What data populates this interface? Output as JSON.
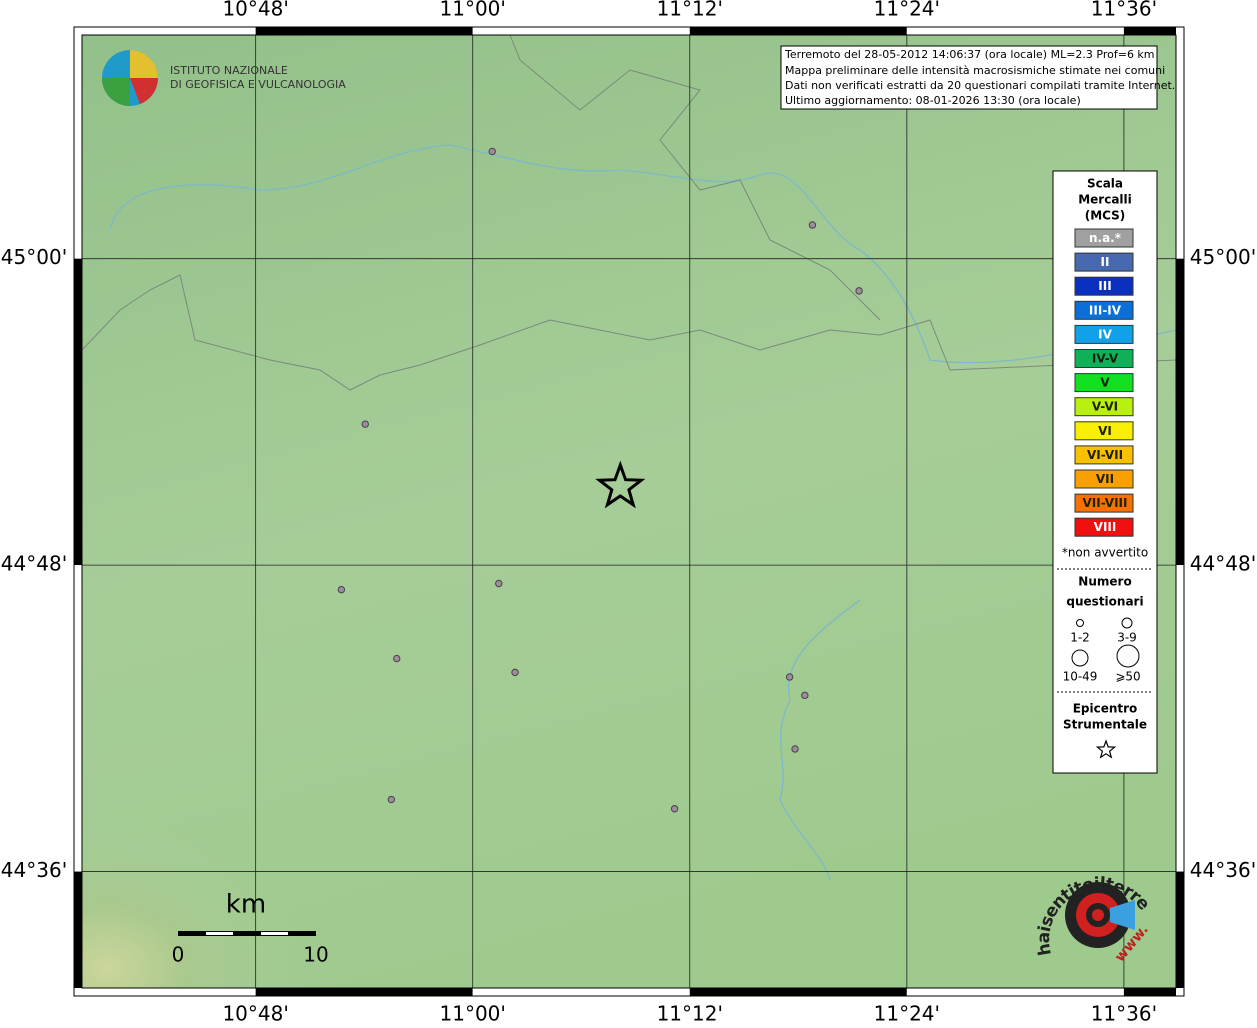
{
  "map": {
    "lonlim": [
      10.64,
      11.648
    ],
    "latlim": [
      44.524,
      45.146
    ],
    "lonticks": [
      {
        "value": 10.8,
        "label": "10°48'"
      },
      {
        "value": 11.0,
        "label": "11°00'"
      },
      {
        "value": 11.2,
        "label": "11°12'"
      },
      {
        "value": 11.4,
        "label": "11°24'"
      },
      {
        "value": 11.6,
        "label": "11°36'"
      }
    ],
    "latticks": [
      {
        "value": 45.0,
        "label": "45°00'"
      },
      {
        "value": 44.8,
        "label": "44°48'"
      },
      {
        "value": 44.6,
        "label": "44°36'"
      }
    ],
    "grid": true,
    "points": {
      "lon": [
        11.018,
        11.313,
        11.356,
        10.901,
        10.879,
        11.024,
        10.93,
        11.039,
        11.292,
        11.306,
        11.297,
        10.925,
        11.186
      ],
      "lat": [
        45.07,
        45.022,
        44.979,
        44.892,
        44.784,
        44.788,
        44.739,
        44.73,
        44.727,
        44.715,
        44.68,
        44.647,
        44.641
      ],
      "color": "#a08aa0"
    },
    "epicenter": {
      "lon": 11.136,
      "lat": 44.851
    },
    "logo": [
      "ISTITUTO NAZIONALE",
      "DI GEOFISICA E VULCANOLOGIA"
    ],
    "info": [
      "Terremoto del 28-05-2012 14:06:37 (ora locale) ML=2.3 Prof=6 km",
      "Mappa preliminare delle intensità macrosismiche stimate nei comuni",
      "Dati non verificati estratti da 20 questionari compilati tramite Internet.",
      "Ultimo aggiornamento: 08-01-2026 13:30 (ora locale)"
    ],
    "scalebar": {
      "unit": "km",
      "labels": [
        "0",
        "10"
      ]
    },
    "badge": {
      "text": "haisentitoilterremoto.it",
      "prefix": "www."
    }
  },
  "legend": {
    "title": [
      "Scala",
      "Mercalli",
      "(MCS)"
    ],
    "classes": [
      {
        "label": "n.a.*",
        "color": "#a0a0a0",
        "text_color": "#ffffff"
      },
      {
        "label": "II",
        "color": "#4868b0",
        "text_color": "#ffffff"
      },
      {
        "label": "III",
        "color": "#0a30c0",
        "text_color": "#ffffff"
      },
      {
        "label": "III-IV",
        "color": "#0a70d8",
        "text_color": "#ffffff"
      },
      {
        "label": "IV",
        "color": "#12a0e8",
        "text_color": "#ffffff"
      },
      {
        "label": "IV-V",
        "color": "#10b058",
        "text_color": "#102010"
      },
      {
        "label": "V",
        "color": "#10e020",
        "text_color": "#102010"
      },
      {
        "label": "V-VI",
        "color": "#b8f010",
        "text_color": "#202000"
      },
      {
        "label": "VI",
        "color": "#f8f000",
        "text_color": "#202000"
      },
      {
        "label": "VI-VII",
        "color": "#f8c000",
        "text_color": "#202000"
      },
      {
        "label": "VII",
        "color": "#f8a000",
        "text_color": "#202000"
      },
      {
        "label": "VII-VIII",
        "color": "#f87000",
        "text_color": "#202000"
      },
      {
        "label": "VIII",
        "color": "#f01010",
        "text_color": "#ffffff"
      }
    ],
    "note": "*non avvertito",
    "count_title": [
      "Numero",
      "questionari"
    ],
    "count_labels": [
      "1-2",
      "3-9",
      "10-49",
      "⩾50"
    ],
    "epicenter_title": [
      "Epicentro",
      "Strumentale"
    ]
  }
}
